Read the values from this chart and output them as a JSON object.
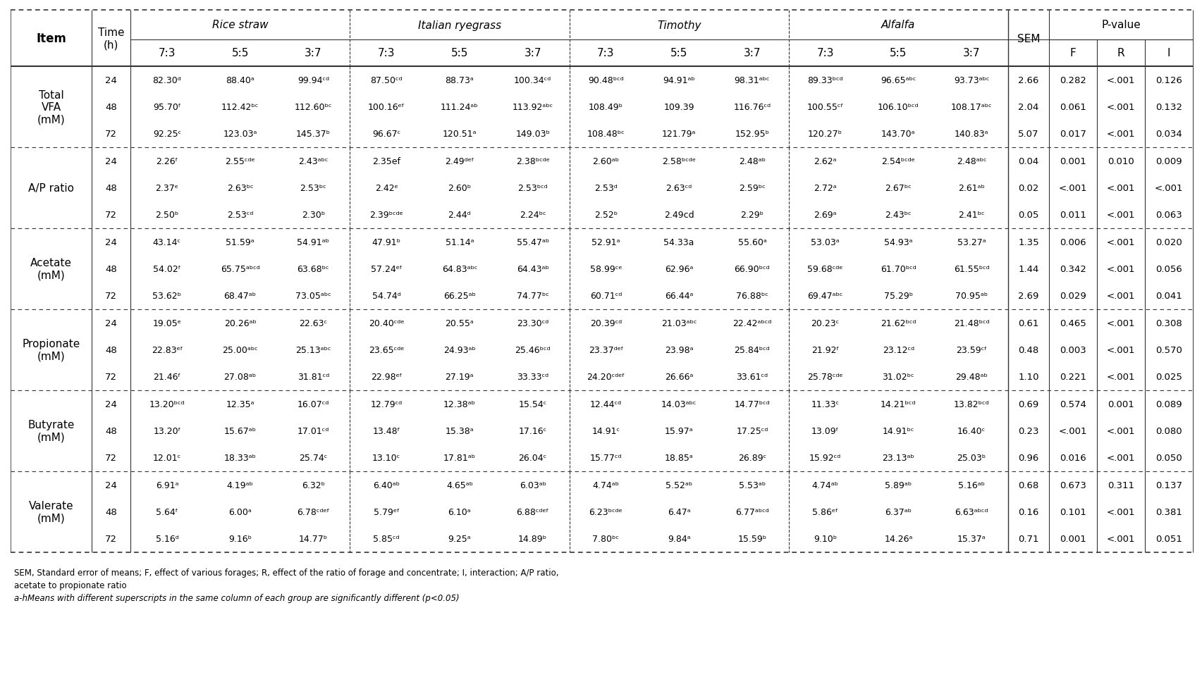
{
  "header_groups": [
    "Rice straw",
    "Italian ryegrass",
    "Timothy",
    "Alfalfa"
  ],
  "subheaders": [
    "7:3",
    "5:5",
    "3:7"
  ],
  "pvalue_cols": [
    "F",
    "R",
    "I"
  ],
  "rows": [
    {
      "item": "Total\nVFA\n(mM)",
      "time": "24",
      "values": [
        "82.30ᵈ",
        "88.40ᵃ",
        "99.94ᶜᵈ",
        "87.50ᶜᵈ",
        "88.73ᵃ",
        "100.34ᶜᵈ",
        "90.48ᵇᶜᵈ",
        "94.91ᵃᵇ",
        "98.31ᵃᵇᶜ",
        "89.33ᵇᶜᵈ",
        "96.65ᵃᵇᶜ",
        "93.73ᵃᵇᶜ"
      ],
      "sem": "2.66",
      "F": "0.282",
      "R": "<.001",
      "I": "0.126"
    },
    {
      "item": "Total\nVFA\n(mM)",
      "time": "48",
      "values": [
        "95.70ᶠ",
        "112.42ᵇᶜ",
        "112.60ᵇᶜ",
        "100.16ᵉᶠ",
        "111.24ᵃᵇ",
        "113.92ᵃᵇᶜ",
        "108.49ᵇ",
        "109.39",
        "116.76ᶜᵈ",
        "100.55ᶜᶠ",
        "106.10ᵇᶜᵈ",
        "108.17ᵃᵇᶜ"
      ],
      "sem": "2.04",
      "F": "0.061",
      "R": "<.001",
      "I": "0.132"
    },
    {
      "item": "Total\nVFA\n(mM)",
      "time": "72",
      "values": [
        "92.25ᶜ",
        "123.03ᵃ",
        "145.37ᵇ",
        "96.67ᶜ",
        "120.51ᵃ",
        "149.03ᵇ",
        "108.48ᵇᶜ",
        "121.79ᵃ",
        "152.95ᵇ",
        "120.27ᵇ",
        "143.70ᵃ",
        "140.83ᵃ"
      ],
      "sem": "5.07",
      "F": "0.017",
      "R": "<.001",
      "I": "0.034"
    },
    {
      "item": "A/P ratio",
      "time": "24",
      "values": [
        "2.26ᶠ",
        "2.55ᶜᵈᵉ",
        "2.43ᵃᵇᶜ",
        "2.35ef",
        "2.49ᵈᵉᶠ",
        "2.38ᵇᶜᵈᵉ",
        "2.60ᵃᵇ",
        "2.58ᵇᶜᵈᵉ",
        "2.48ᵃᵇ",
        "2.62ᵃ",
        "2.54ᵇᶜᵈᵉ",
        "2.48ᵃᵇᶜ"
      ],
      "sem": "0.04",
      "F": "0.001",
      "R": "0.010",
      "I": "0.009"
    },
    {
      "item": "A/P ratio",
      "time": "48",
      "values": [
        "2.37ᵉ",
        "2.63ᵇᶜ",
        "2.53ᵇᶜ",
        "2.42ᵉ",
        "2.60ᵇ",
        "2.53ᵇᶜᵈ",
        "2.53ᵈ",
        "2.63ᶜᵈ",
        "2.59ᵇᶜ",
        "2.72ᵃ",
        "2.67ᵇᶜ",
        "2.61ᵃᵇ"
      ],
      "sem": "0.02",
      "F": "<.001",
      "R": "<.001",
      "I": "<.001"
    },
    {
      "item": "A/P ratio",
      "time": "72",
      "values": [
        "2.50ᵇ",
        "2.53ᶜᵈ",
        "2.30ᵇ",
        "2.39ᵇᶜᵈᵉ",
        "2.44ᵈ",
        "2.24ᵇᶜ",
        "2.52ᵇ",
        "2.49cd",
        "2.29ᵇ",
        "2.69ᵃ",
        "2.43ᵇᶜ",
        "2.41ᵇᶜ"
      ],
      "sem": "0.05",
      "F": "0.011",
      "R": "<.001",
      "I": "0.063"
    },
    {
      "item": "Acetate\n(mM)",
      "time": "24",
      "values": [
        "43.14ᶜ",
        "51.59ᵃ",
        "54.91ᵃᵇ",
        "47.91ᵇ",
        "51.14ᵃ",
        "55.47ᵃᵇ",
        "52.91ᵃ",
        "54.33a",
        "55.60ᵃ",
        "53.03ᵃ",
        "54.93ᵃ",
        "53.27ᵃ"
      ],
      "sem": "1.35",
      "F": "0.006",
      "R": "<.001",
      "I": "0.020"
    },
    {
      "item": "Acetate\n(mM)",
      "time": "48",
      "values": [
        "54.02ᶠ",
        "65.75ᵃᵇᶜᵈ",
        "63.68ᵇᶜ",
        "57.24ᵉᶠ",
        "64.83ᵃᵇᶜ",
        "64.43ᵃᵇ",
        "58.99ᶜᵉ",
        "62.96ᵃ",
        "66.90ᵇᶜᵈ",
        "59.68ᶜᵈᵉ",
        "61.70ᵇᶜᵈ",
        "61.55ᵇᶜᵈ"
      ],
      "sem": "1.44",
      "F": "0.342",
      "R": "<.001",
      "I": "0.056"
    },
    {
      "item": "Acetate\n(mM)",
      "time": "72",
      "values": [
        "53.62ᵇ",
        "68.47ᵃᵇ",
        "73.05ᵃᵇᶜ",
        "54.74ᵈ",
        "66.25ᵃᵇ",
        "74.77ᵇᶜ",
        "60.71ᶜᵈ",
        "66.44ᵃ",
        "76.88ᵇᶜ",
        "69.47ᵃᵇᶜ",
        "75.29ᵇ",
        "70.95ᵃᵇ"
      ],
      "sem": "2.69",
      "F": "0.029",
      "R": "<.001",
      "I": "0.041"
    },
    {
      "item": "Propionate\n(mM)",
      "time": "24",
      "values": [
        "19.05ᵉ",
        "20.26ᵃᵇ",
        "22.63ᶜ",
        "20.40ᶜᵈᵉ",
        "20.55ᵃ",
        "23.30ᶜᵈ",
        "20.39ᶜᵈ",
        "21.03ᵃᵇᶜ",
        "22.42ᵃᵇᶜᵈ",
        "20.23ᶜ",
        "21.62ᵇᶜᵈ",
        "21.48ᵇᶜᵈ"
      ],
      "sem": "0.61",
      "F": "0.465",
      "R": "<.001",
      "I": "0.308"
    },
    {
      "item": "Propionate\n(mM)",
      "time": "48",
      "values": [
        "22.83ᵉᶠ",
        "25.00ᵃᵇᶜ",
        "25.13ᵃᵇᶜ",
        "23.65ᶜᵈᵉ",
        "24.93ᵃᵇ",
        "25.46ᵇᶜᵈ",
        "23.37ᵈᵉᶠ",
        "23.98ᵃ",
        "25.84ᵇᶜᵈ",
        "21.92ᶠ",
        "23.12ᶜᵈ",
        "23.59ᶜᶠ"
      ],
      "sem": "0.48",
      "F": "0.003",
      "R": "<.001",
      "I": "0.570"
    },
    {
      "item": "Propionate\n(mM)",
      "time": "72",
      "values": [
        "21.46ᶠ",
        "27.08ᵃᵇ",
        "31.81ᶜᵈ",
        "22.98ᵉᶠ",
        "27.19ᵃ",
        "33.33ᶜᵈ",
        "24.20ᶜᵈᵉᶠ",
        "26.66ᵃ",
        "33.61ᶜᵈ",
        "25.78ᶜᵈᵉ",
        "31.02ᵇᶜ",
        "29.48ᵃᵇ"
      ],
      "sem": "1.10",
      "F": "0.221",
      "R": "<.001",
      "I": "0.025"
    },
    {
      "item": "Butyrate\n(mM)",
      "time": "24",
      "values": [
        "13.20ᵇᶜᵈ",
        "12.35ᵃ",
        "16.07ᶜᵈ",
        "12.79ᶜᵈ",
        "12.38ᵃᵇ",
        "15.54ᶜ",
        "12.44ᶜᵈ",
        "14.03ᵃᵇᶜ",
        "14.77ᵇᶜᵈ",
        "11.33ᶜ",
        "14.21ᵇᶜᵈ",
        "13.82ᵇᶜᵈ"
      ],
      "sem": "0.69",
      "F": "0.574",
      "R": "0.001",
      "I": "0.089"
    },
    {
      "item": "Butyrate\n(mM)",
      "time": "48",
      "values": [
        "13.20ᶠ",
        "15.67ᵃᵇ",
        "17.01ᶜᵈ",
        "13.48ᶠ",
        "15.38ᵃ",
        "17.16ᶜ",
        "14.91ᶜ",
        "15.97ᵃ",
        "17.25ᶜᵈ",
        "13.09ᶠ",
        "14.91ᵇᶜ",
        "16.40ᶜ"
      ],
      "sem": "0.23",
      "F": "<.001",
      "R": "<.001",
      "I": "0.080"
    },
    {
      "item": "Butyrate\n(mM)",
      "time": "72",
      "values": [
        "12.01ᶜ",
        "18.33ᵃᵇ",
        "25.74ᶜ",
        "13.10ᶜ",
        "17.81ᵃᵇ",
        "26.04ᶜ",
        "15.77ᶜᵈ",
        "18.85ᵃ",
        "26.89ᶜ",
        "15.92ᶜᵈ",
        "23.13ᵃᵇ",
        "25.03ᵇ"
      ],
      "sem": "0.96",
      "F": "0.016",
      "R": "<.001",
      "I": "0.050"
    },
    {
      "item": "Valerate\n(mM)",
      "time": "24",
      "values": [
        "6.91ᵃ",
        "4.19ᵃᵇ",
        "6.32ᵇ",
        "6.40ᵃᵇ",
        "4.65ᵃᵇ",
        "6.03ᵃᵇ",
        "4.74ᵃᵇ",
        "5.52ᵃᵇ",
        "5.53ᵃᵇ",
        "4.74ᵃᵇ",
        "5.89ᵃᵇ",
        "5.16ᵃᵇ"
      ],
      "sem": "0.68",
      "F": "0.673",
      "R": "0.311",
      "I": "0.137"
    },
    {
      "item": "Valerate\n(mM)",
      "time": "48",
      "values": [
        "5.64ᶠ",
        "6.00ᵃ",
        "6.78ᶜᵈᵉᶠ",
        "5.79ᵉᶠ",
        "6.10ᵃ",
        "6.88ᶜᵈᵉᶠ",
        "6.23ᵇᶜᵈᵉ",
        "6.47ᵃ",
        "6.77ᵃᵇᶜᵈ",
        "5.86ᵉᶠ",
        "6.37ᵃᵇ",
        "6.63ᵃᵇᶜᵈ"
      ],
      "sem": "0.16",
      "F": "0.101",
      "R": "<.001",
      "I": "0.381"
    },
    {
      "item": "Valerate\n(mM)",
      "time": "72",
      "values": [
        "5.16ᵈ",
        "9.16ᵇ",
        "14.77ᵇ",
        "5.85ᶜᵈ",
        "9.25ᵃ",
        "14.89ᵇ",
        "7.80ᵇᶜ",
        "9.84ᵃ",
        "15.59ᵇ",
        "9.10ᵇ",
        "14.26ᵃ",
        "15.37ᵃ"
      ],
      "sem": "0.71",
      "F": "0.001",
      "R": "<.001",
      "I": "0.051"
    }
  ],
  "footnote1": "SEM, Standard error of means; F, effect of various forages; R, effect of the ratio of forage and concentrate; I, interaction; A/P ratio,",
  "footnote2": "acetate to propionate ratio",
  "footnote3": "a-hMeans with different superscripts in the same column of each group are significantly different (p<0.05)"
}
